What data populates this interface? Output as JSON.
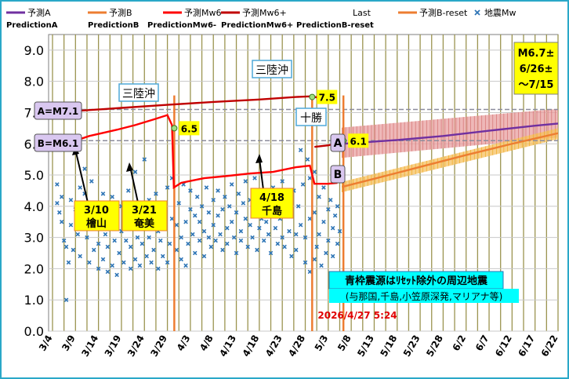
{
  "chart_data": {
    "type": "line",
    "ylim": [
      0,
      9.5
    ],
    "yticks": [
      "0.0",
      "1.0",
      "2.0",
      "3.0",
      "4.0",
      "5.0",
      "6.0",
      "7.0",
      "8.0",
      "9.0"
    ],
    "xticks": [
      "3/4",
      "3/9",
      "3/14",
      "3/19",
      "3/24",
      "3/29",
      "4/3",
      "4/8",
      "4/13",
      "4/18",
      "4/23",
      "4/28",
      "5/3",
      "5/8",
      "5/13",
      "5/18",
      "5/23",
      "5/28",
      "6/2",
      "6/7",
      "6/12",
      "6/17",
      "6/22"
    ],
    "xlim_days": [
      0,
      110
    ],
    "legend": [
      {
        "name": "予測A",
        "sub": "PredictionA",
        "color": "#7030a0",
        "style": "line"
      },
      {
        "name": "予測B",
        "sub": "PredictionB",
        "color": "#ed7d31",
        "style": "line"
      },
      {
        "name": "予測Mw6-",
        "sub": "PredictionMw6-",
        "color": "#ff0000",
        "style": "line"
      },
      {
        "name": "予測Mw6+",
        "sub": "PredictionMw6+",
        "color": "#c00000",
        "style": "line"
      },
      {
        "name": "Last",
        "sub": "",
        "color": "#9fe080",
        "style": "none"
      },
      {
        "name": "予測B-reset",
        "sub": "PredictionB-reset",
        "color": "#ed7d31",
        "style": "line"
      },
      {
        "name": "地震Mw",
        "sub": "",
        "color": "#2e75b6",
        "style": "marker"
      }
    ],
    "series": [
      {
        "name": "予測Mw6+",
        "color": "#c00000",
        "points": [
          [
            5,
            7.05
          ],
          [
            15,
            7.15
          ],
          [
            25,
            7.25
          ],
          [
            35,
            7.34
          ],
          [
            45,
            7.42
          ],
          [
            53,
            7.5
          ],
          [
            56,
            7.52
          ],
          [
            58,
            7.48
          ]
        ]
      },
      {
        "name": "予測Mw6-",
        "color": "#ff0000",
        "points": [
          [
            4,
            6.05
          ],
          [
            8,
            6.25
          ],
          [
            14,
            6.45
          ],
          [
            18,
            6.6
          ],
          [
            22,
            6.78
          ],
          [
            25,
            6.92
          ],
          [
            26,
            6.6
          ],
          [
            26.4,
            4.6
          ],
          [
            28,
            4.75
          ],
          [
            33,
            4.9
          ],
          [
            38,
            4.97
          ],
          [
            43,
            5.05
          ],
          [
            48,
            5.1
          ],
          [
            53,
            5.25
          ],
          [
            56,
            5.3
          ],
          [
            57,
            4.72
          ],
          [
            60,
            4.72
          ],
          [
            62,
            4.75
          ]
        ]
      },
      {
        "name": "予測Mw6+ (4/23)",
        "color": "#c00000",
        "points": [
          [
            57,
            5.9
          ],
          [
            60,
            5.95
          ],
          [
            62,
            6.02
          ]
        ]
      },
      {
        "name": "予測A",
        "color": "#7030a0",
        "points": [
          [
            63,
            6.0
          ],
          [
            75,
            6.12
          ],
          [
            85,
            6.25
          ],
          [
            95,
            6.42
          ],
          [
            105,
            6.58
          ],
          [
            110,
            6.65
          ]
        ]
      },
      {
        "name": "予測B",
        "color": "#ed7d31",
        "points": [
          [
            63,
            4.62
          ],
          [
            70,
            4.88
          ],
          [
            80,
            5.26
          ],
          [
            90,
            5.64
          ],
          [
            100,
            6.0
          ],
          [
            110,
            6.34
          ]
        ]
      }
    ],
    "bands": [
      {
        "series": "予測A",
        "color": "#e8a0a0",
        "lower": [
          [
            63,
            5.55
          ],
          [
            110,
            6.2
          ]
        ],
        "upper": [
          [
            63,
            6.52
          ],
          [
            110,
            7.12
          ]
        ]
      },
      {
        "series": "予測B",
        "color": "#f5c060",
        "lower": [
          [
            63,
            4.45
          ],
          [
            110,
            6.15
          ]
        ],
        "upper": [
          [
            63,
            4.78
          ],
          [
            110,
            6.5
          ]
        ]
      }
    ],
    "hlines": [
      {
        "y": 7.1,
        "color": "#8c8c9c",
        "dash": true
      },
      {
        "y": 6.1,
        "color": "#8c8c9c",
        "dash": true
      }
    ],
    "vlines_orange": [
      26.5,
      56.5,
      63.3
    ],
    "last_markers": [
      {
        "x": 26.5,
        "y": 6.5,
        "text": "6.5"
      },
      {
        "x": 56.5,
        "y": 7.5,
        "text": "7.5"
      },
      {
        "x": 63.3,
        "y": 6.1,
        "text": "6.1"
      }
    ],
    "scatter_mw": [
      [
        1,
        4.7
      ],
      [
        1,
        4.1
      ],
      [
        1.5,
        3.8
      ],
      [
        2,
        4.3
      ],
      [
        2,
        3.5
      ],
      [
        2.5,
        2.9
      ],
      [
        3,
        2.7
      ],
      [
        3,
        1.0
      ],
      [
        3.5,
        2.2
      ],
      [
        4,
        4.2
      ],
      [
        4,
        3.4
      ],
      [
        4.5,
        2.6
      ],
      [
        5,
        3.9
      ],
      [
        5.5,
        3.1
      ],
      [
        6,
        4.6
      ],
      [
        6,
        2.4
      ],
      [
        6.5,
        3.6
      ],
      [
        7,
        5.2
      ],
      [
        7,
        4.4
      ],
      [
        7.5,
        3.0
      ],
      [
        8,
        2.2
      ],
      [
        8,
        3.7
      ],
      [
        8.5,
        4.8
      ],
      [
        9,
        2.6
      ],
      [
        9,
        3.3
      ],
      [
        9.5,
        4.1
      ],
      [
        10,
        2.0
      ],
      [
        10,
        2.8
      ],
      [
        10.5,
        3.6
      ],
      [
        11,
        4.4
      ],
      [
        11,
        2.3
      ],
      [
        11.5,
        3.1
      ],
      [
        12,
        1.9
      ],
      [
        12,
        2.7
      ],
      [
        12.5,
        3.5
      ],
      [
        13,
        4.3
      ],
      [
        13,
        2.1
      ],
      [
        13.5,
        2.9
      ],
      [
        14,
        3.8
      ],
      [
        14,
        1.8
      ],
      [
        14.5,
        2.5
      ],
      [
        15,
        3.2
      ],
      [
        15,
        4.0
      ],
      [
        15.5,
        2.2
      ],
      [
        16,
        2.9
      ],
      [
        16,
        3.6
      ],
      [
        16.5,
        4.5
      ],
      [
        17,
        2.0
      ],
      [
        17,
        2.7
      ],
      [
        17.5,
        3.4
      ],
      [
        18,
        5.1
      ],
      [
        18,
        2.3
      ],
      [
        18.5,
        3.0
      ],
      [
        19,
        3.8
      ],
      [
        19,
        2.1
      ],
      [
        19.5,
        2.8
      ],
      [
        20,
        5.5
      ],
      [
        20,
        3.5
      ],
      [
        20.5,
        2.4
      ],
      [
        21,
        4.2
      ],
      [
        21,
        3.0
      ],
      [
        21.5,
        2.2
      ],
      [
        22,
        3.7
      ],
      [
        22,
        2.6
      ],
      [
        22.5,
        4.4
      ],
      [
        23,
        3.2
      ],
      [
        23,
        2.0
      ],
      [
        23.5,
        2.9
      ],
      [
        24,
        3.9
      ],
      [
        24,
        2.4
      ],
      [
        24.5,
        3.3
      ],
      [
        25,
        4.6
      ],
      [
        25,
        2.2
      ],
      [
        25.5,
        2.8
      ],
      [
        26,
        3.6
      ],
      [
        26,
        4.9
      ],
      [
        27,
        2.6
      ],
      [
        27,
        3.4
      ],
      [
        27.5,
        4.1
      ],
      [
        28,
        2.3
      ],
      [
        28,
        3.0
      ],
      [
        28.5,
        4.7
      ],
      [
        29,
        3.5
      ],
      [
        29,
        2.1
      ],
      [
        29.5,
        2.8
      ],
      [
        30,
        3.9
      ],
      [
        30,
        4.5
      ],
      [
        30.5,
        3.1
      ],
      [
        31,
        2.5
      ],
      [
        31,
        3.7
      ],
      [
        31.5,
        4.3
      ],
      [
        32,
        2.9
      ],
      [
        32,
        3.5
      ],
      [
        32.5,
        4.0
      ],
      [
        33,
        2.4
      ],
      [
        33,
        3.2
      ],
      [
        33.5,
        4.6
      ],
      [
        34,
        3.0
      ],
      [
        34,
        3.8
      ],
      [
        34.5,
        2.7
      ],
      [
        35,
        4.2
      ],
      [
        35,
        3.4
      ],
      [
        35.5,
        2.9
      ],
      [
        36,
        3.7
      ],
      [
        36,
        4.5
      ],
      [
        36.5,
        3.1
      ],
      [
        37,
        2.6
      ],
      [
        37,
        3.9
      ],
      [
        37.5,
        4.3
      ],
      [
        38,
        3.3
      ],
      [
        38,
        2.8
      ],
      [
        38.5,
        4.0
      ],
      [
        39,
        3.5
      ],
      [
        39,
        4.7
      ],
      [
        39.5,
        3.0
      ],
      [
        40,
        2.5
      ],
      [
        40,
        3.8
      ],
      [
        40.5,
        4.4
      ],
      [
        41,
        3.2
      ],
      [
        41,
        2.9
      ],
      [
        41.5,
        4.1
      ],
      [
        42,
        3.6
      ],
      [
        42,
        4.8
      ],
      [
        42.5,
        2.7
      ],
      [
        43,
        3.4
      ],
      [
        43,
        4.2
      ],
      [
        43.5,
        3.0
      ],
      [
        44,
        3.8
      ],
      [
        44,
        4.9
      ],
      [
        44.5,
        2.6
      ],
      [
        45,
        3.3
      ],
      [
        45,
        4.0
      ],
      [
        45.5,
        3.6
      ],
      [
        46,
        4.5
      ],
      [
        46,
        2.9
      ],
      [
        46.5,
        3.5
      ],
      [
        47,
        4.2
      ],
      [
        47,
        3.1
      ],
      [
        47.5,
        2.5
      ],
      [
        48,
        3.9
      ],
      [
        48,
        4.6
      ],
      [
        48.5,
        3.3
      ],
      [
        49,
        2.8
      ],
      [
        49,
        4.1
      ],
      [
        49.5,
        3.6
      ],
      [
        50,
        4.8
      ],
      [
        50,
        3.0
      ],
      [
        50.5,
        2.7
      ],
      [
        51,
        3.9
      ],
      [
        51,
        4.4
      ],
      [
        51.5,
        3.2
      ],
      [
        52,
        2.4
      ],
      [
        52,
        3.7
      ],
      [
        52.5,
        4.5
      ],
      [
        53,
        3.1
      ],
      [
        53,
        2.6
      ],
      [
        53.5,
        4.0
      ],
      [
        54,
        5.8
      ],
      [
        54,
        3.4
      ],
      [
        54.5,
        4.7
      ],
      [
        55,
        2.2
      ],
      [
        55,
        3.0
      ],
      [
        55.5,
        5.5
      ],
      [
        56,
        1.9
      ],
      [
        56,
        3.6
      ],
      [
        56,
        4.9
      ],
      [
        57,
        2.3
      ],
      [
        57,
        3.8
      ],
      [
        57,
        5.1
      ],
      [
        57.5,
        2.7
      ],
      [
        58,
        4.3
      ],
      [
        58,
        3.1
      ],
      [
        58.5,
        2.1
      ],
      [
        59,
        3.5
      ],
      [
        59,
        4.6
      ],
      [
        59.5,
        2.5
      ],
      [
        60,
        3.9
      ],
      [
        60,
        2.9
      ],
      [
        60.5,
        4.2
      ],
      [
        61,
        3.3
      ],
      [
        61,
        2.4
      ],
      [
        61.5,
        3.7
      ],
      [
        62,
        2.8
      ],
      [
        62,
        4.0
      ],
      [
        62.5,
        3.2
      ]
    ],
    "annotations": {
      "box_a": "A=M7.1",
      "box_b": "B=M6.1",
      "sanriku_upper": "三陸沖",
      "sanriku_lower": "三陸沖",
      "tokachi": "十勝",
      "label_a": "A",
      "label_b": "B",
      "ev1_date": "3/10",
      "ev1_name": "檜山",
      "ev2_date": "3/21",
      "ev2_name": "奄美",
      "ev3_date": "4/18",
      "ev3_name": "千島",
      "forecast_line1": "M6.7±",
      "forecast_line2": "6/26±",
      "forecast_line3": "～7/15",
      "note_title": "青枠震源はﾘｾｯﾄ除外の周辺地震",
      "note_sub": "(与那国,千島,小笠原深発,マリアナ等)",
      "timestamp": "2026/4/27 5:24"
    }
  }
}
